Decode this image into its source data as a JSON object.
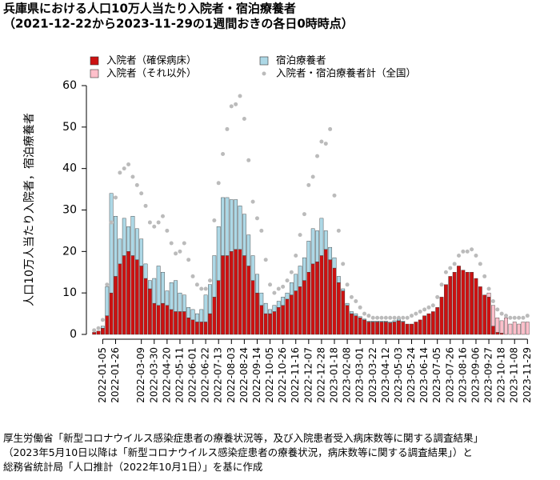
{
  "chart_data": {
    "type": "bar",
    "stacked": true,
    "title": "兵庫県における人口10万人当たり入院者・宿泊療養者",
    "subtitle": "（2021-12-22から2023-11-29の1週間おきの各日0時時点）",
    "ylabel": "人口10万人当たり入院者，宿泊療養者",
    "ylim": [
      0,
      60
    ],
    "yticks": [
      0,
      10,
      20,
      30,
      40,
      50,
      60
    ],
    "categories": [
      null,
      null,
      "2022-01-05",
      null,
      null,
      "2022-01-26",
      null,
      null,
      null,
      null,
      null,
      "2022-03-09",
      null,
      null,
      "2022-03-30",
      null,
      null,
      "2022-04-20",
      null,
      null,
      "2022-05-11",
      null,
      null,
      "2022-06-01",
      null,
      null,
      "2022-06-22",
      null,
      null,
      "2022-07-13",
      null,
      null,
      "2022-08-03",
      null,
      null,
      "2022-08-24",
      null,
      null,
      "2022-09-14",
      null,
      null,
      "2022-10-05",
      null,
      null,
      "2022-10-26",
      null,
      null,
      "2022-11-16",
      null,
      null,
      "2022-12-07",
      null,
      null,
      "2022-12-28",
      null,
      null,
      "2023-01-18",
      null,
      null,
      "2023-02-08",
      null,
      null,
      "2023-03-01",
      null,
      null,
      "2023-03-22",
      null,
      null,
      "2023-04-12",
      null,
      null,
      "2023-05-03",
      null,
      null,
      "2023-05-24",
      null,
      null,
      "2023-06-14",
      null,
      null,
      "2023-07-05",
      null,
      null,
      "2023-07-26",
      null,
      null,
      "2023-08-16",
      null,
      null,
      "2023-09-06",
      null,
      null,
      "2023-09-27",
      null,
      null,
      "2023-10-18",
      null,
      null,
      "2023-11-08",
      null,
      null,
      "2023-11-29"
    ],
    "series": [
      {
        "name": "入院者（確保病床）",
        "color": "#cc1111",
        "values": [
          0.5,
          0.8,
          1.5,
          4.5,
          10,
          14,
          17,
          19,
          20,
          19,
          18,
          16.5,
          13.5,
          11,
          7.5,
          7,
          7.5,
          7,
          6,
          5.5,
          5.5,
          5.5,
          4,
          3.5,
          3,
          3,
          3,
          5,
          9,
          13,
          19,
          19,
          20,
          20.5,
          20.5,
          19,
          16.5,
          13,
          10,
          7,
          5,
          5,
          5.5,
          6.5,
          7,
          8.5,
          9.5,
          10.5,
          11.5,
          13,
          15,
          17,
          17.5,
          19,
          20.5,
          18,
          16,
          12.5,
          10.5,
          7,
          5,
          4.5,
          4,
          3.5,
          3,
          3,
          3,
          3,
          3,
          2.8,
          3,
          3.3,
          3,
          2.5,
          2.5,
          3,
          3.5,
          4.5,
          5,
          5.5,
          6.5,
          9,
          12,
          14,
          15,
          16.5,
          15.5,
          15,
          15,
          13.5,
          11.5,
          9.5,
          9,
          2,
          0.5,
          0.3,
          null,
          null,
          null,
          null,
          null,
          null
        ]
      },
      {
        "name": "入院者（それ以外）",
        "color": "#ffc0cb",
        "values": [
          null,
          null,
          null,
          null,
          null,
          null,
          null,
          null,
          null,
          null,
          null,
          null,
          null,
          null,
          null,
          null,
          null,
          null,
          null,
          null,
          null,
          null,
          null,
          null,
          null,
          null,
          null,
          null,
          null,
          null,
          null,
          null,
          null,
          null,
          null,
          null,
          null,
          null,
          null,
          null,
          null,
          null,
          null,
          null,
          null,
          null,
          null,
          null,
          null,
          null,
          null,
          null,
          null,
          null,
          null,
          null,
          null,
          null,
          null,
          null,
          null,
          null,
          null,
          null,
          null,
          null,
          null,
          null,
          null,
          null,
          null,
          null,
          null,
          null,
          null,
          null,
          null,
          null,
          null,
          null,
          null,
          null,
          null,
          null,
          null,
          null,
          null,
          null,
          null,
          null,
          null,
          null,
          1,
          5,
          3.5,
          3,
          4,
          2.5,
          3,
          2.5,
          3,
          3
        ]
      },
      {
        "name": "宿泊療養者",
        "color": "#add8e6",
        "values": [
          null,
          null,
          0.5,
          7,
          24,
          14.5,
          6,
          9,
          6,
          9.5,
          7.5,
          6.5,
          3.5,
          2,
          6,
          9.5,
          7.5,
          3.5,
          6.5,
          7.5,
          4.5,
          4,
          2.5,
          2.5,
          2,
          3,
          6.5,
          7,
          10,
          13,
          14,
          14,
          12.5,
          12,
          10.5,
          10,
          7.5,
          6,
          4.5,
          3,
          2.5,
          1,
          1.5,
          1.5,
          2,
          1.5,
          3,
          4,
          5,
          5.5,
          7.5,
          8.5,
          7.5,
          9,
          4.5,
          3,
          2.5,
          1.5,
          0.5,
          0.5,
          0.5,
          0.5,
          0.3,
          0.2,
          0.2,
          0.2,
          0.2,
          0.2,
          0.2,
          0.2,
          0.3,
          0.4,
          0.2,
          null,
          null,
          null,
          null,
          null,
          null,
          null,
          null,
          null,
          null,
          null,
          null,
          null,
          null,
          null,
          null,
          null,
          null,
          null,
          null,
          null,
          null,
          null,
          null,
          null,
          null,
          null,
          null,
          null
        ]
      },
      {
        "name": "入院者・宿泊療養者計（全国）",
        "type": "scatter",
        "color": "#bbbbbb",
        "values": [
          1,
          1.5,
          3.5,
          12,
          27,
          33,
          39,
          40,
          41,
          38,
          36,
          34,
          31,
          27,
          26,
          27,
          28.5,
          25,
          22,
          19.5,
          20,
          22,
          18,
          14,
          12,
          11,
          11,
          13,
          27.5,
          36.5,
          43.5,
          49.5,
          55,
          55.5,
          57.5,
          52,
          42,
          32,
          28,
          25,
          18,
          12,
          10,
          11,
          11.5,
          13,
          15,
          19,
          24,
          29,
          36,
          38,
          43,
          46.5,
          46,
          49.5,
          33.5,
          25,
          17,
          12,
          9,
          8,
          6.5,
          5,
          4.5,
          4,
          4,
          4,
          4,
          4,
          4,
          4,
          4,
          4,
          4.5,
          5,
          5.5,
          6,
          6.5,
          7,
          9,
          12,
          15,
          16,
          17,
          19,
          20,
          20,
          20.5,
          19,
          17,
          14,
          11,
          8,
          6,
          5,
          4.5,
          4,
          4,
          4,
          4,
          4.5
        ]
      }
    ]
  },
  "notes": [
    "厚生労働省「新型コロナウイルス感染症患者の療養状況等，及び入院患者受入病床数等に関する調査結果」",
    "（2023年5月10日以降は「新型コロナウイルス感染症患者の療養状況，病床数等に関する調査結果」）と",
    "総務省統計局「人口推計（2022年10月1日）」を基に作成"
  ]
}
